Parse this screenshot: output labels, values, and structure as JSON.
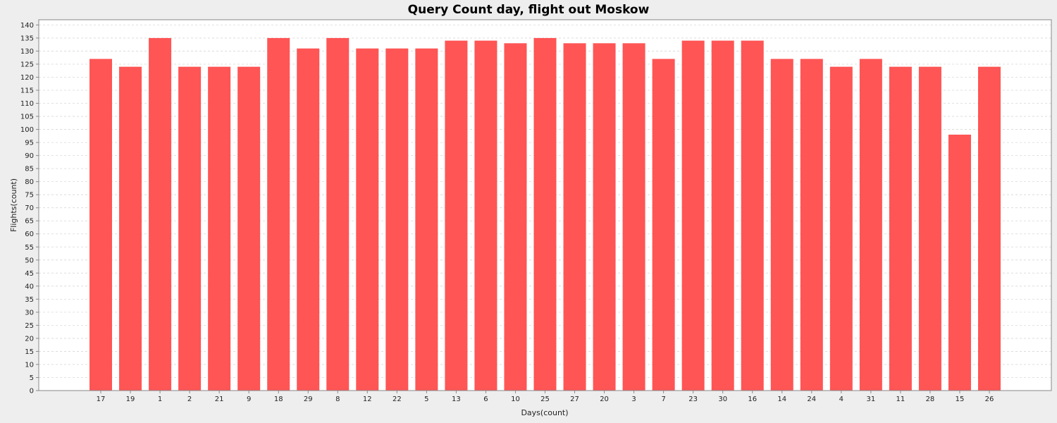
{
  "chart_data": {
    "type": "bar",
    "title": "Query Count day, flight out Moskow",
    "xlabel": "Days(count)",
    "ylabel": "Flights(count)",
    "ylim": [
      0,
      142
    ],
    "ytick_step": 5,
    "ytick_max": 140,
    "grid": true,
    "legend": "none",
    "bar_color": "#ff5555",
    "background_color": "#ffffff",
    "grid_color": "#d8d8d8",
    "categories": [
      "17",
      "19",
      "1",
      "2",
      "21",
      "9",
      "18",
      "29",
      "8",
      "12",
      "22",
      "5",
      "13",
      "6",
      "10",
      "25",
      "27",
      "20",
      "3",
      "7",
      "23",
      "30",
      "16",
      "14",
      "24",
      "4",
      "31",
      "11",
      "28",
      "15",
      "26"
    ],
    "values": [
      127,
      124,
      135,
      124,
      124,
      124,
      135,
      131,
      135,
      131,
      131,
      131,
      134,
      134,
      133,
      135,
      133,
      133,
      133,
      127,
      134,
      134,
      134,
      127,
      127,
      124,
      127,
      124,
      124,
      98,
      124
    ]
  }
}
